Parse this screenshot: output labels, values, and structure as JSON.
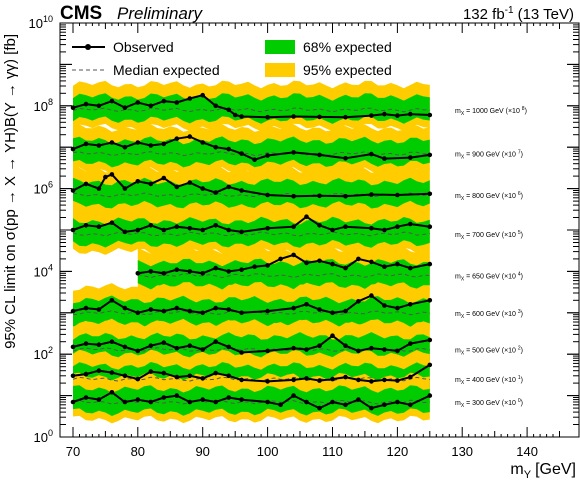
{
  "header": {
    "experiment": "CMS",
    "status": "Preliminary",
    "luminosity": "132 fb",
    "lumi_exponent": "-1",
    "energy": "(13 TeV)"
  },
  "axes": {
    "ylabel": "95% CL limit on σ(pp → X → YH)B(Y → γγ) [fb]",
    "xlabel": "m",
    "xlabel_sub": "Y",
    "xlabel_unit": "[GeV]",
    "y_base": "10",
    "y_exponents": [
      "0",
      "2",
      "4",
      "6",
      "8",
      "10"
    ],
    "x_ticks": [
      "70",
      "80",
      "90",
      "100",
      "110",
      "120",
      "130",
      "140"
    ]
  },
  "legend": {
    "observed": "Observed",
    "median": "Median expected",
    "band68": "68% expected",
    "band95": "95% expected"
  },
  "colors": {
    "band68": "#00cc00",
    "band95": "#ffcc00",
    "observed": "#000000",
    "median": "#555555"
  },
  "chart_data": {
    "type": "line",
    "xlim": [
      68,
      148
    ],
    "ylim": [
      1,
      10000000000.0
    ],
    "log_y": true,
    "series": [
      {
        "label": "m  = 1000 GeV (×10 )",
        "lab_sub": "X",
        "lab_mult": "8",
        "x_start": 70,
        "median": 80000000.0,
        "observed": [
          [
            70,
            90000000.0
          ],
          [
            72,
            110000000.0
          ],
          [
            74,
            100000000.0
          ],
          [
            76,
            130000000.0
          ],
          [
            78,
            90000000.0
          ],
          [
            80,
            120000000.0
          ],
          [
            82,
            100000000.0
          ],
          [
            84,
            130000000.0
          ],
          [
            86,
            120000000.0
          ],
          [
            88,
            150000000.0
          ],
          [
            90,
            180000000.0
          ],
          [
            92,
            100000000.0
          ],
          [
            94,
            80000000.0
          ],
          [
            95,
            60000000.0
          ],
          [
            96,
            55000000.0
          ],
          [
            100,
            53000000.0
          ],
          [
            104,
            55000000.0
          ],
          [
            108,
            54000000.0
          ],
          [
            112,
            53000000.0
          ],
          [
            116,
            58000000.0
          ],
          [
            118,
            63000000.0
          ],
          [
            120,
            58000000.0
          ],
          [
            122,
            63000000.0
          ],
          [
            125,
            60000000.0
          ]
        ]
      },
      {
        "label": "m  = 900 GeV (×10 )",
        "lab_sub": "X",
        "lab_mult": "7",
        "x_start": 70,
        "median": 7000000.0,
        "observed": [
          [
            70,
            9000000.0
          ],
          [
            72,
            12000000.0
          ],
          [
            74,
            11000000.0
          ],
          [
            76,
            13000000.0
          ],
          [
            78,
            10000000.0
          ],
          [
            80,
            13000000.0
          ],
          [
            82,
            11000000.0
          ],
          [
            84,
            12000000.0
          ],
          [
            86,
            16000000.0
          ],
          [
            88,
            18000000.0
          ],
          [
            90,
            13000000.0
          ],
          [
            92,
            10000000.0
          ],
          [
            94,
            9000000.0
          ],
          [
            96,
            7000000.0
          ],
          [
            98,
            5000000.0
          ],
          [
            100,
            6300000.0
          ],
          [
            104,
            7500000.0
          ],
          [
            108,
            6500000.0
          ],
          [
            112,
            5400000.0
          ],
          [
            116,
            6800000.0
          ],
          [
            118,
            5300000.0
          ],
          [
            122,
            5600000.0
          ],
          [
            125,
            6500000.0
          ]
        ]
      },
      {
        "label": "m  = 800 GeV (×10 )",
        "lab_sub": "X",
        "lab_mult": "6",
        "x_start": 70,
        "median": 700000.0,
        "observed": [
          [
            70,
            900000.0
          ],
          [
            72,
            1300000.0
          ],
          [
            74,
            1000000.0
          ],
          [
            75,
            1900000.0
          ],
          [
            76,
            2200000.0
          ],
          [
            78,
            1000000.0
          ],
          [
            80,
            1500000.0
          ],
          [
            82,
            1300000.0
          ],
          [
            84,
            1800000.0
          ],
          [
            86,
            1100000.0
          ],
          [
            88,
            1400000.0
          ],
          [
            90,
            1000000.0
          ],
          [
            92,
            800000.0
          ],
          [
            94,
            1100000.0
          ],
          [
            96,
            900000.0
          ],
          [
            100,
            700000.0
          ],
          [
            104,
            650000.0
          ],
          [
            108,
            670000.0
          ],
          [
            112,
            650000.0
          ],
          [
            116,
            720000.0
          ],
          [
            120,
            700000.0
          ],
          [
            125,
            750000.0
          ]
        ]
      },
      {
        "label": "m  = 700 GeV (×10 )",
        "lab_sub": "X",
        "lab_mult": "5",
        "x_start": 70,
        "median": 80000.0,
        "observed": [
          [
            70,
            100000.0
          ],
          [
            72,
            130000.0
          ],
          [
            74,
            120000.0
          ],
          [
            76,
            150000.0
          ],
          [
            78,
            90000.0
          ],
          [
            80,
            100000.0
          ],
          [
            82,
            130000.0
          ],
          [
            84,
            100000.0
          ],
          [
            86,
            120000.0
          ],
          [
            88,
            110000.0
          ],
          [
            90,
            100000.0
          ],
          [
            92,
            130000.0
          ],
          [
            94,
            100000.0
          ],
          [
            96,
            90000.0
          ],
          [
            100,
            110000.0
          ],
          [
            104,
            120000.0
          ],
          [
            106,
            210000.0
          ],
          [
            108,
            130000.0
          ],
          [
            110,
            100000.0
          ],
          [
            112,
            120000.0
          ],
          [
            116,
            110000.0
          ],
          [
            118,
            100000.0
          ],
          [
            120,
            120000.0
          ],
          [
            122,
            140000.0
          ],
          [
            125,
            120000.0
          ]
        ]
      },
      {
        "label": "m  = 650 GeV (×10 )",
        "lab_sub": "X",
        "lab_mult": "4",
        "x_start": 80,
        "median": 8000.0,
        "observed": [
          [
            80,
            9000.0
          ],
          [
            82,
            10000.0
          ],
          [
            84,
            9000.0
          ],
          [
            86,
            11000.0
          ],
          [
            88,
            10000.0
          ],
          [
            90,
            9000.0
          ],
          [
            92,
            12000.0
          ],
          [
            94,
            10000.0
          ],
          [
            96,
            11000.0
          ],
          [
            98,
            13000.0
          ],
          [
            100,
            14000.0
          ],
          [
            102,
            20000.0
          ],
          [
            104,
            25000.0
          ],
          [
            106,
            16000.0
          ],
          [
            108,
            18000.0
          ],
          [
            110,
            15000.0
          ],
          [
            112,
            12000.0
          ],
          [
            114,
            20000.0
          ],
          [
            116,
            17000.0
          ],
          [
            118,
            13000.0
          ],
          [
            120,
            15000.0
          ],
          [
            122,
            12000.0
          ],
          [
            125,
            15000.0
          ]
        ]
      },
      {
        "label": "m  = 600 GeV (×10 )",
        "lab_sub": "X",
        "lab_mult": "3",
        "x_start": 70,
        "median": 1000.0,
        "observed": [
          [
            70,
            1100.0
          ],
          [
            72,
            1300.0
          ],
          [
            74,
            1200.0
          ],
          [
            76,
            2000.0
          ],
          [
            78,
            1300.0
          ],
          [
            80,
            1000.0
          ],
          [
            82,
            1200.0
          ],
          [
            84,
            1100.0
          ],
          [
            86,
            1300.0
          ],
          [
            88,
            1100.0
          ],
          [
            90,
            1000.0
          ],
          [
            92,
            1300.0
          ],
          [
            94,
            1200.0
          ],
          [
            96,
            1000.0
          ],
          [
            100,
            1100.0
          ],
          [
            104,
            1300.0
          ],
          [
            106,
            1600.0
          ],
          [
            108,
            1200.0
          ],
          [
            110,
            1000.0
          ],
          [
            112,
            1100.0
          ],
          [
            114,
            1900.0
          ],
          [
            116,
            2600.0
          ],
          [
            118,
            1500.0
          ],
          [
            120,
            1300.0
          ],
          [
            122,
            1600.0
          ],
          [
            125,
            2000.0
          ]
        ]
      },
      {
        "label": "m  = 500 GeV (×10 )",
        "lab_sub": "X",
        "lab_mult": "2",
        "x_start": 70,
        "median": 130.0,
        "observed": [
          [
            70,
            150.0
          ],
          [
            72,
            180.0
          ],
          [
            74,
            170.0
          ],
          [
            76,
            200.0
          ],
          [
            78,
            150.0
          ],
          [
            80,
            120.0
          ],
          [
            82,
            160.0
          ],
          [
            84,
            190.0
          ],
          [
            86,
            140.0
          ],
          [
            88,
            160.0
          ],
          [
            90,
            130.0
          ],
          [
            92,
            200.0
          ],
          [
            94,
            150.0
          ],
          [
            96,
            110.0
          ],
          [
            100,
            120.0
          ],
          [
            104,
            140.0
          ],
          [
            106,
            130.0
          ],
          [
            108,
            160.0
          ],
          [
            110,
            280.0
          ],
          [
            112,
            160.0
          ],
          [
            114,
            120.0
          ],
          [
            116,
            140.0
          ],
          [
            118,
            130.0
          ],
          [
            120,
            120.0
          ],
          [
            122,
            180.0
          ],
          [
            125,
            220.0
          ]
        ]
      },
      {
        "label": "m  = 400 GeV (×10 )",
        "lab_sub": "X",
        "lab_mult": "1",
        "x_start": 70,
        "median": 25,
        "observed": [
          [
            70,
            30
          ],
          [
            72,
            33
          ],
          [
            74,
            40
          ],
          [
            76,
            36
          ],
          [
            78,
            30
          ],
          [
            80,
            25
          ],
          [
            82,
            38
          ],
          [
            84,
            35
          ],
          [
            86,
            28
          ],
          [
            88,
            30
          ],
          [
            90,
            26
          ],
          [
            92,
            35
          ],
          [
            94,
            30
          ],
          [
            96,
            24
          ],
          [
            100,
            22
          ],
          [
            104,
            24
          ],
          [
            106,
            26
          ],
          [
            108,
            23
          ],
          [
            110,
            25
          ],
          [
            112,
            28
          ],
          [
            114,
            24
          ],
          [
            116,
            22
          ],
          [
            118,
            24
          ],
          [
            120,
            23
          ],
          [
            122,
            28
          ],
          [
            125,
            55
          ]
        ]
      },
      {
        "label": "m  = 300 GeV (×10 )",
        "lab_sub": "X",
        "lab_mult": "0",
        "x_start": 70,
        "median": 7,
        "observed": [
          [
            70,
            7
          ],
          [
            72,
            9
          ],
          [
            74,
            8
          ],
          [
            76,
            12
          ],
          [
            78,
            7
          ],
          [
            80,
            8
          ],
          [
            82,
            7
          ],
          [
            84,
            9
          ],
          [
            86,
            10
          ],
          [
            88,
            7
          ],
          [
            90,
            8
          ],
          [
            92,
            7
          ],
          [
            94,
            9
          ],
          [
            96,
            8
          ],
          [
            100,
            7
          ],
          [
            102,
            6
          ],
          [
            104,
            10
          ],
          [
            106,
            7
          ],
          [
            108,
            5
          ],
          [
            110,
            7
          ],
          [
            112,
            6
          ],
          [
            114,
            8
          ],
          [
            116,
            5
          ],
          [
            118,
            6
          ],
          [
            120,
            7
          ],
          [
            122,
            6
          ],
          [
            125,
            10
          ]
        ]
      }
    ]
  }
}
